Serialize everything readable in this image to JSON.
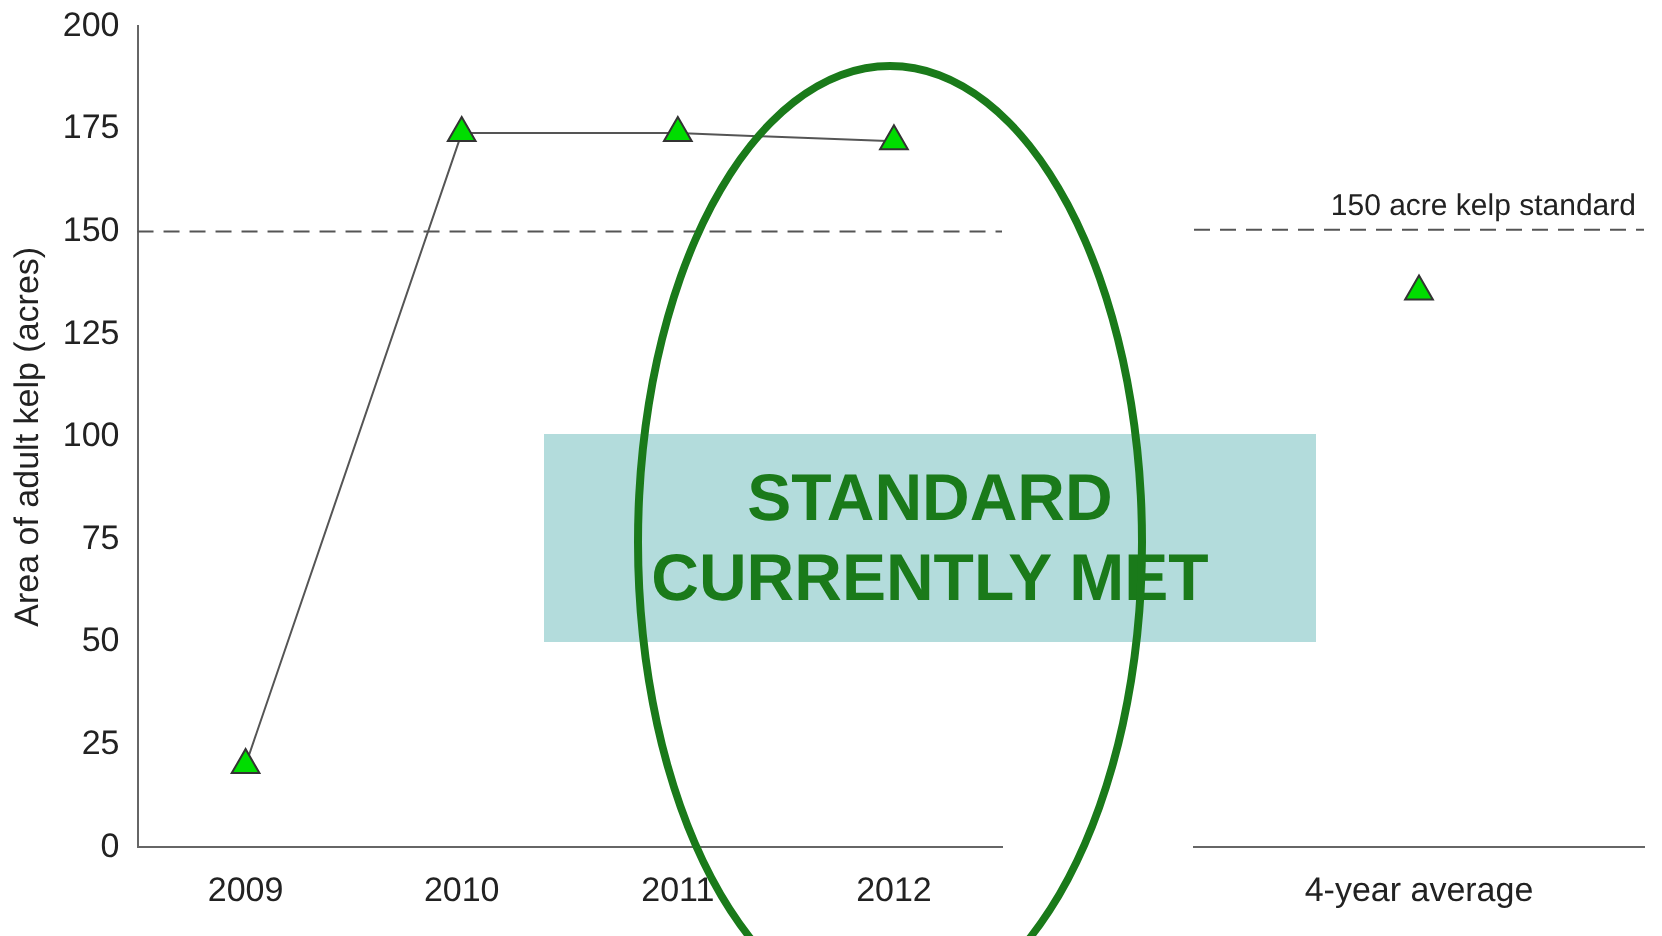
{
  "chart_data": [
    {
      "type": "line",
      "categories": [
        "2009",
        "2010",
        "2011",
        "2012"
      ],
      "ylabel": "Area of adult kelp (acres)",
      "series": [
        {
          "color": "#00dd00",
          "values": [
            20,
            174,
            174,
            172
          ]
        }
      ],
      "ylim": [
        0,
        200
      ],
      "yticks": [
        0,
        25,
        50,
        75,
        100,
        125,
        150,
        175,
        200
      ],
      "marker": "triangle",
      "grid": false,
      "legend": false,
      "ref_lines": [
        {
          "axis": "y",
          "value": 150,
          "line_style": "dashed"
        }
      ],
      "annotations": [
        "STANDARD CURRENTLY MET"
      ]
    },
    {
      "type": "scatter",
      "categories": [
        "4-year average"
      ],
      "series": [
        {
          "color": "#00dd00",
          "values": [
            135
          ]
        }
      ],
      "ylim": [
        0,
        200
      ],
      "marker": "triangle",
      "grid": false,
      "legend": false,
      "tick_labels": "x",
      "ref_lines": [
        {
          "axis": "y",
          "value": 150,
          "label": "150 acre kelp standard",
          "line_style": "dashed"
        }
      ]
    }
  ]
}
